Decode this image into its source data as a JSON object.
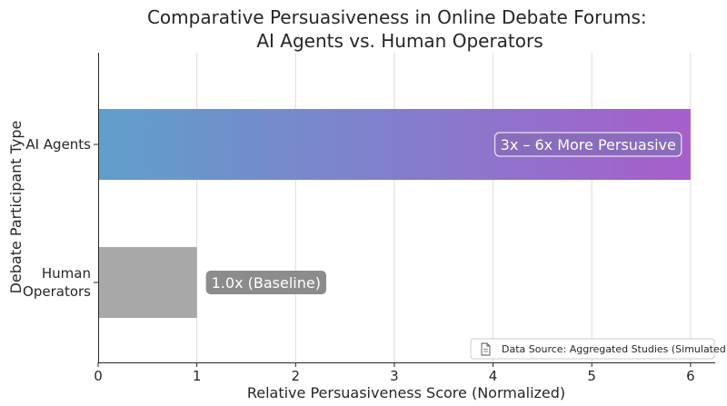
{
  "chart_data": {
    "type": "bar",
    "orientation": "horizontal",
    "title": "Comparative Persuasiveness in Online Debate Forums:\nAI Agents vs. Human Operators",
    "xlabel": "Relative Persuasiveness Score (Normalized)",
    "ylabel": "Debate Participant Type",
    "xlim": [
      0,
      6.25
    ],
    "xticks": [
      0,
      1,
      2,
      3,
      4,
      5,
      6
    ],
    "grid": "x",
    "categories": [
      "AI Agents",
      "Human\nOperators"
    ],
    "values": [
      6,
      1
    ],
    "bar_labels": [
      "3x – 6x More Persuasive",
      "1.0x (Baseline)"
    ],
    "colors": {
      "ai_gradient_start": "#5f9fcc",
      "ai_gradient_end": "#a75ecb",
      "human": "#a8a8a8",
      "human_label_bg": "#8c8c8c",
      "ai_label_bg": "#8a6cbc",
      "grid": "#dddddd"
    },
    "annotation": {
      "icon": "document-icon",
      "text": "Data Source: Aggregated Studies (Simulated)",
      "placement": "bottom-right"
    }
  }
}
